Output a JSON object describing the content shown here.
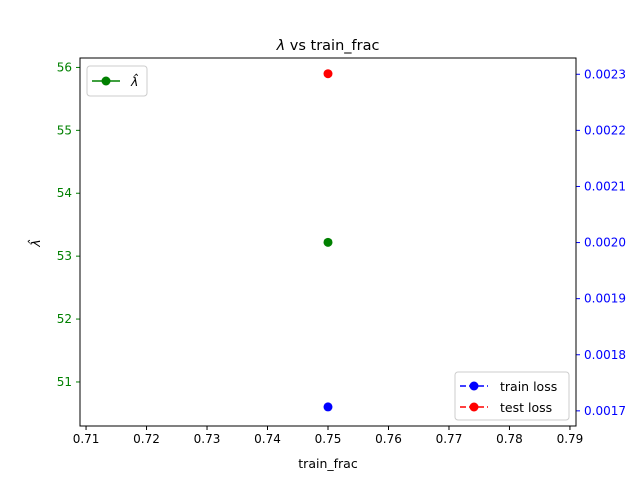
{
  "chart_data": {
    "type": "scatter",
    "title_symbol": "λ",
    "title_rest": " vs train_frac",
    "xlabel": "train_frac",
    "ylabel_left": "λ̂",
    "xlim": [
      0.709,
      0.791
    ],
    "xticks": [
      "0.71",
      "0.72",
      "0.73",
      "0.74",
      "0.75",
      "0.76",
      "0.77",
      "0.78",
      "0.79"
    ],
    "left_axis": {
      "color": "#008000",
      "ylim": [
        50.3,
        56.15
      ],
      "ticks": [
        "51",
        "52",
        "53",
        "54",
        "55",
        "56"
      ]
    },
    "right_axis": {
      "color": "#0000ff",
      "ylim": [
        0.001673,
        0.002329
      ],
      "ticks": [
        "0.0017",
        "0.0018",
        "0.0019",
        "0.0020",
        "0.0021",
        "0.0022",
        "0.0023"
      ]
    },
    "series": [
      {
        "name": "λ̂",
        "axis": "left",
        "color": "#008000",
        "linestyle": "solid",
        "x": [
          0.75
        ],
        "y": [
          53.22
        ]
      },
      {
        "name": "train loss",
        "axis": "right",
        "color": "#0000ff",
        "linestyle": "dashed",
        "x": [
          0.75
        ],
        "y": [
          0.001707
        ]
      },
      {
        "name": "test loss",
        "axis": "right",
        "color": "#ff0000",
        "linestyle": "dashed",
        "x": [
          0.75
        ],
        "y": [
          0.002301
        ]
      }
    ],
    "legend_left": {
      "placement": "upper-left",
      "entries": [
        "λ̂"
      ]
    },
    "legend_right": {
      "placement": "lower-right",
      "entries": [
        "train loss",
        "test loss"
      ]
    },
    "grid": false
  }
}
